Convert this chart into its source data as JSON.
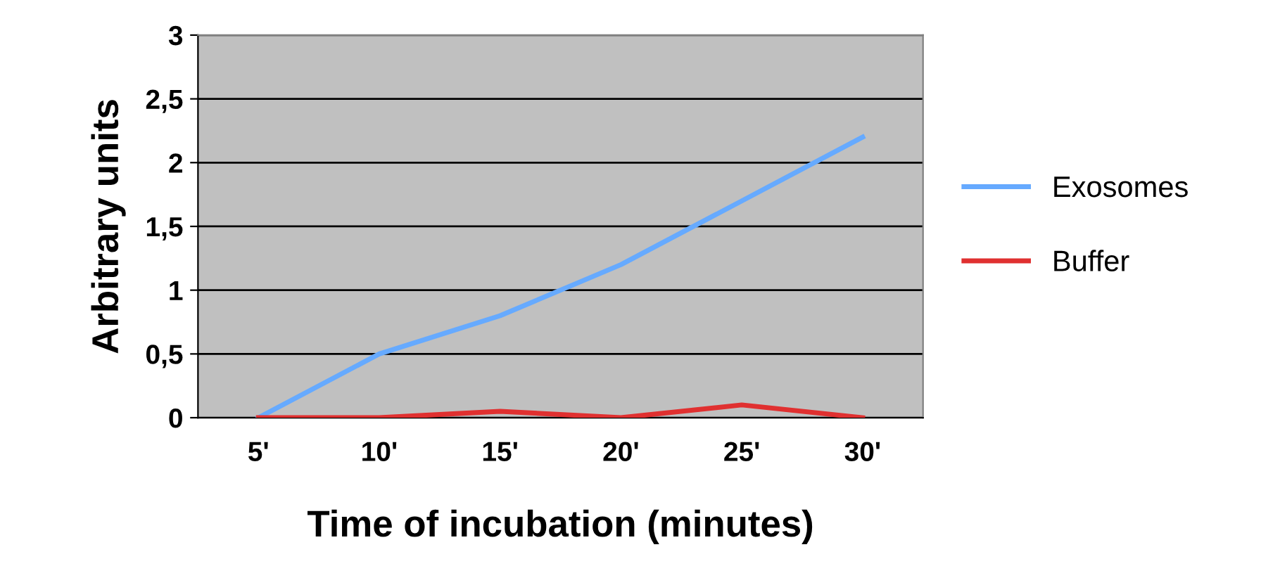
{
  "chart_data": {
    "type": "line",
    "xlabel": "Time of incubation (minutes)",
    "ylabel": "Arbitrary units",
    "categories": [
      "5'",
      "10'",
      "15'",
      "20'",
      "25'",
      "30'"
    ],
    "series": [
      {
        "name": "Exosomes",
        "color": "#66aaff",
        "values": [
          0,
          0.5,
          0.8,
          1.2,
          1.7,
          2.2
        ]
      },
      {
        "name": "Buffer",
        "color": "#e03030",
        "values": [
          0,
          0,
          0.05,
          0,
          0.1,
          0
        ]
      }
    ],
    "ylim": [
      0,
      3
    ],
    "yticks": [
      0,
      {
        "value": 0.5,
        "label": "0,5"
      },
      1,
      {
        "value": 1.5,
        "label": "1,5"
      },
      2,
      {
        "value": 2.5,
        "label": "2,5"
      },
      3
    ],
    "grid": "y",
    "legend": "right",
    "marker": "none",
    "line_style": "solid"
  }
}
